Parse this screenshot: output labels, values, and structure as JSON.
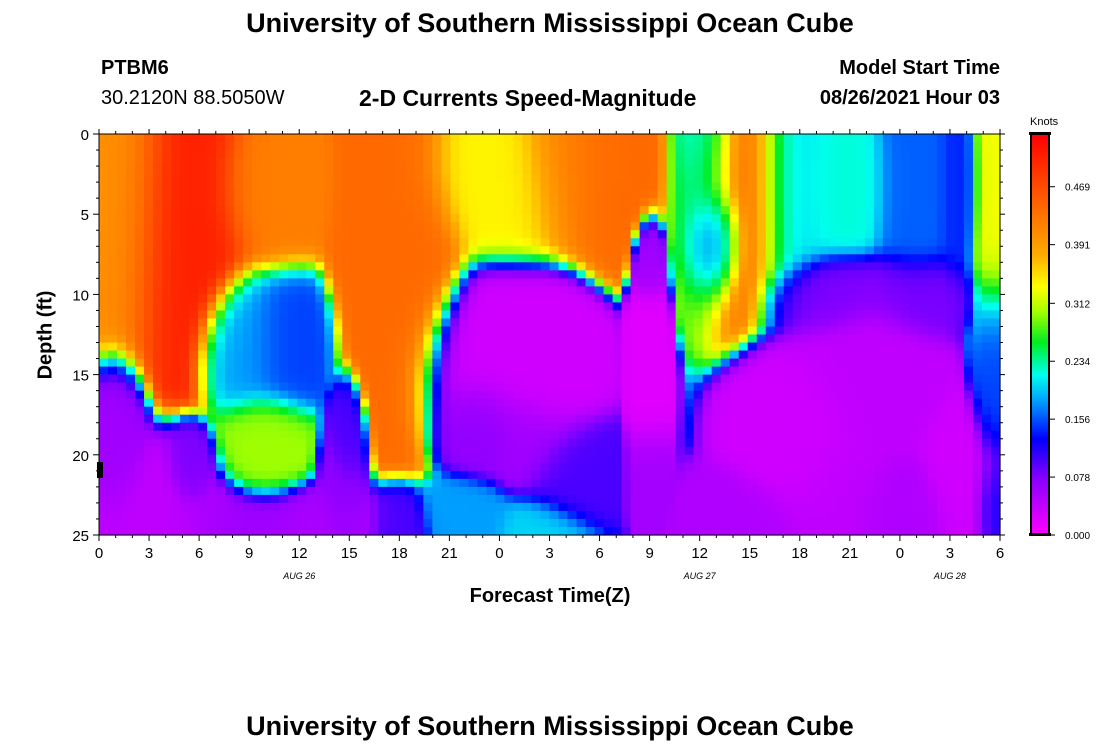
{
  "page": {
    "title": "University of Southern Mississippi Ocean Cube",
    "footer_title": "University of Southern Mississippi Ocean Cube",
    "station_id": "PTBM6",
    "station_coords": "30.2120N  88.5050W",
    "plot_title": "2-D Currents Speed-Magnitude",
    "model_start_label": "Model Start Time",
    "model_start_value": "08/26/2021 Hour 03"
  },
  "chart_data": {
    "type": "heatmap",
    "title": "2-D Currents Speed-Magnitude",
    "xlabel": "Forecast Time(Z)",
    "ylabel": "Depth (ft)",
    "x_tick_labels": [
      "0",
      "3",
      "6",
      "9",
      "12",
      "15",
      "18",
      "21",
      "0",
      "3",
      "6",
      "9",
      "12",
      "15",
      "18",
      "21",
      "0",
      "3",
      "6"
    ],
    "x_range": [
      0,
      54
    ],
    "date_labels": [
      {
        "label": "AUG 26",
        "at_hour": 12
      },
      {
        "label": "AUG 27",
        "at_hour": 36
      },
      {
        "label": "AUG 28",
        "at_hour": 51
      }
    ],
    "y_tick_labels": [
      "0",
      "5",
      "10",
      "15",
      "20",
      "25"
    ],
    "y_range": [
      0,
      25
    ],
    "y_inverted": true,
    "colorbar": {
      "unit": "Knots",
      "range": [
        0.0,
        0.54
      ],
      "tick_labels": [
        "0.000",
        "0.078",
        "0.156",
        "0.234",
        "0.312",
        "0.391",
        "0.469"
      ],
      "tick_values": [
        0.0,
        0.078,
        0.156,
        0.234,
        0.312,
        0.391,
        0.469
      ]
    },
    "features": [
      {
        "t": 5,
        "d": 3,
        "v": 0.51,
        "sx": 2.5,
        "sy": 6
      },
      {
        "t": 1.5,
        "d": 2,
        "v": 0.4,
        "sx": 2,
        "sy": 6
      },
      {
        "t": 10,
        "d": 3,
        "v": 0.42,
        "sx": 2,
        "sy": 3
      },
      {
        "t": 18,
        "d": 5,
        "v": 0.44,
        "sx": 2,
        "sy": 7
      },
      {
        "t": 24,
        "d": 2,
        "v": 0.34,
        "sx": 3,
        "sy": 3
      },
      {
        "t": 28,
        "d": 1,
        "v": 0.42,
        "sx": 2,
        "sy": 3
      },
      {
        "t": 30,
        "d": 1.5,
        "v": 0.44,
        "sx": 2,
        "sy": 3
      },
      {
        "t": 36.5,
        "d": 2,
        "v": 0.2,
        "sx": 1.2,
        "sy": 4
      },
      {
        "t": 37,
        "d": 6,
        "v": 0.14,
        "sx": 1,
        "sy": 2
      },
      {
        "t": 38.5,
        "d": 3,
        "v": 0.43,
        "sx": 2,
        "sy": 4
      },
      {
        "t": 41.5,
        "d": 3,
        "v": 0.2,
        "sx": 1.5,
        "sy": 4
      },
      {
        "t": 44,
        "d": 3,
        "v": 0.22,
        "sx": 2,
        "sy": 3
      },
      {
        "t": 49,
        "d": 3,
        "v": 0.16,
        "sx": 1.5,
        "sy": 4
      },
      {
        "t": 51.5,
        "d": 3,
        "v": 0.14,
        "sx": 0.8,
        "sy": 4
      },
      {
        "t": 53.5,
        "d": 3,
        "v": 0.33,
        "sx": 0.8,
        "sy": 6
      },
      {
        "t": 3,
        "d": 25,
        "v": 0.04,
        "sx": 3,
        "sy": 3
      },
      {
        "t": 1,
        "d": 20,
        "v": 0.06,
        "sx": 1,
        "sy": 3
      },
      {
        "t": 10,
        "d": 24.5,
        "v": 0.06,
        "sx": 4,
        "sy": 1.5
      },
      {
        "t": 13,
        "d": 25,
        "v": 0.05,
        "sx": 2,
        "sy": 1.5
      },
      {
        "t": 5.5,
        "d": 21,
        "v": 0.08,
        "sx": 0.8,
        "sy": 1.5
      },
      {
        "t": 10,
        "d": 19.5,
        "v": 0.3,
        "sx": 1.5,
        "sy": 2
      },
      {
        "t": 9,
        "d": 13,
        "v": 0.18,
        "sx": 1.5,
        "sy": 2.5
      },
      {
        "t": 11,
        "d": 13,
        "v": 0.15,
        "sx": 1.5,
        "sy": 2.5
      },
      {
        "t": 14.5,
        "d": 23,
        "v": 0.07,
        "sx": 0.8,
        "sy": 3
      },
      {
        "t": 14.8,
        "d": 19,
        "v": 0.1,
        "sx": 0.6,
        "sy": 2
      },
      {
        "t": 18,
        "d": 25,
        "v": 0.1,
        "sx": 1,
        "sy": 1.5
      },
      {
        "t": 24,
        "d": 14,
        "v": 0.03,
        "sx": 2.5,
        "sy": 3
      },
      {
        "t": 27,
        "d": 15,
        "v": 0.03,
        "sx": 1.5,
        "sy": 3
      },
      {
        "t": 23,
        "d": 18,
        "v": 0.07,
        "sx": 1.5,
        "sy": 2
      },
      {
        "t": 26,
        "d": 19,
        "v": 0.06,
        "sx": 1.5,
        "sy": 2
      },
      {
        "t": 28,
        "d": 21,
        "v": 0.1,
        "sx": 1.5,
        "sy": 2
      },
      {
        "t": 22,
        "d": 24,
        "v": 0.18,
        "sx": 1.5,
        "sy": 1.5
      },
      {
        "t": 26.5,
        "d": 25,
        "v": 0.2,
        "sx": 1.5,
        "sy": 1.5
      },
      {
        "t": 33,
        "d": 15,
        "v": 0.02,
        "sx": 0.6,
        "sy": 4
      },
      {
        "t": 33,
        "d": 21,
        "v": 0.06,
        "sx": 0.6,
        "sy": 2
      },
      {
        "t": 33,
        "d": 8,
        "v": 0.06,
        "sx": 0.5,
        "sy": 1.5
      },
      {
        "t": 39,
        "d": 25,
        "v": 0.05,
        "sx": 2,
        "sy": 2
      },
      {
        "t": 42,
        "d": 19,
        "v": 0.03,
        "sx": 2,
        "sy": 3
      },
      {
        "t": 46,
        "d": 15,
        "v": 0.04,
        "sx": 2.5,
        "sy": 3
      },
      {
        "t": 44,
        "d": 23,
        "v": 0.04,
        "sx": 2,
        "sy": 3
      },
      {
        "t": 48,
        "d": 24,
        "v": 0.05,
        "sx": 2,
        "sy": 2
      },
      {
        "t": 52,
        "d": 22,
        "v": 0.03,
        "sx": 1.5,
        "sy": 3
      },
      {
        "t": 44,
        "d": 10,
        "v": 0.08,
        "sx": 2,
        "sy": 1.5
      },
      {
        "t": 49,
        "d": 10,
        "v": 0.08,
        "sx": 2,
        "sy": 1.5
      },
      {
        "t": 53.5,
        "d": 15,
        "v": 0.15,
        "sx": 0.7,
        "sy": 4
      },
      {
        "t": 53.5,
        "d": 23,
        "v": 0.13,
        "sx": 0.7,
        "sy": 2
      }
    ]
  }
}
